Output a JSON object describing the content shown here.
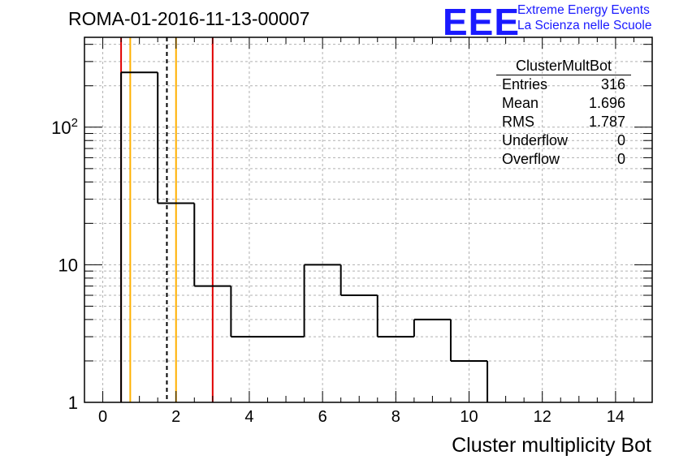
{
  "header": {
    "title": "ROMA-01-2016-11-13-00007",
    "logo": "EEE",
    "logo_line1": "Extreme Energy Events",
    "logo_line2": "La Scienza nelle Scuole"
  },
  "stats_box": {
    "name": "ClusterMultBot",
    "rows": [
      {
        "label": "Entries",
        "value": "316"
      },
      {
        "label": "Mean",
        "value": "1.696"
      },
      {
        "label": "RMS",
        "value": "1.787"
      },
      {
        "label": "Underflow",
        "value": "0"
      },
      {
        "label": "Overflow",
        "value": "0"
      }
    ]
  },
  "colors": {
    "histogram": "#000000",
    "red_line": "#e00000",
    "orange_line": "#ffb000",
    "grid": "#b0b0b0"
  },
  "chart_data": {
    "type": "bar",
    "histogram_style": "step",
    "title": "ROMA-01-2016-11-13-00007",
    "xlabel": "Cluster multiplicity Bot",
    "ylabel": "",
    "xlim": [
      -0.5,
      15
    ],
    "ylim": [
      1,
      450
    ],
    "yscale": "log",
    "grid": true,
    "x_ticks": [
      0,
      2,
      4,
      6,
      8,
      10,
      12,
      14
    ],
    "y_tick_labels": [
      "1",
      "10",
      "10^2"
    ],
    "bins": {
      "edges": [
        0.5,
        1.5,
        2.5,
        3.5,
        4.5,
        5.5,
        6.5,
        7.5,
        8.5,
        9.5,
        10.5
      ],
      "values": [
        250,
        28,
        7,
        3,
        3,
        10,
        6,
        3,
        4,
        2
      ]
    },
    "vertical_lines": [
      {
        "x": 0.5,
        "color": "red",
        "style": "solid"
      },
      {
        "x": 0.75,
        "color": "orange",
        "style": "solid"
      },
      {
        "x": 1.75,
        "color": "black",
        "style": "dashed"
      },
      {
        "x": 2.0,
        "color": "orange",
        "style": "solid"
      },
      {
        "x": 3.0,
        "color": "red",
        "style": "solid"
      }
    ]
  }
}
